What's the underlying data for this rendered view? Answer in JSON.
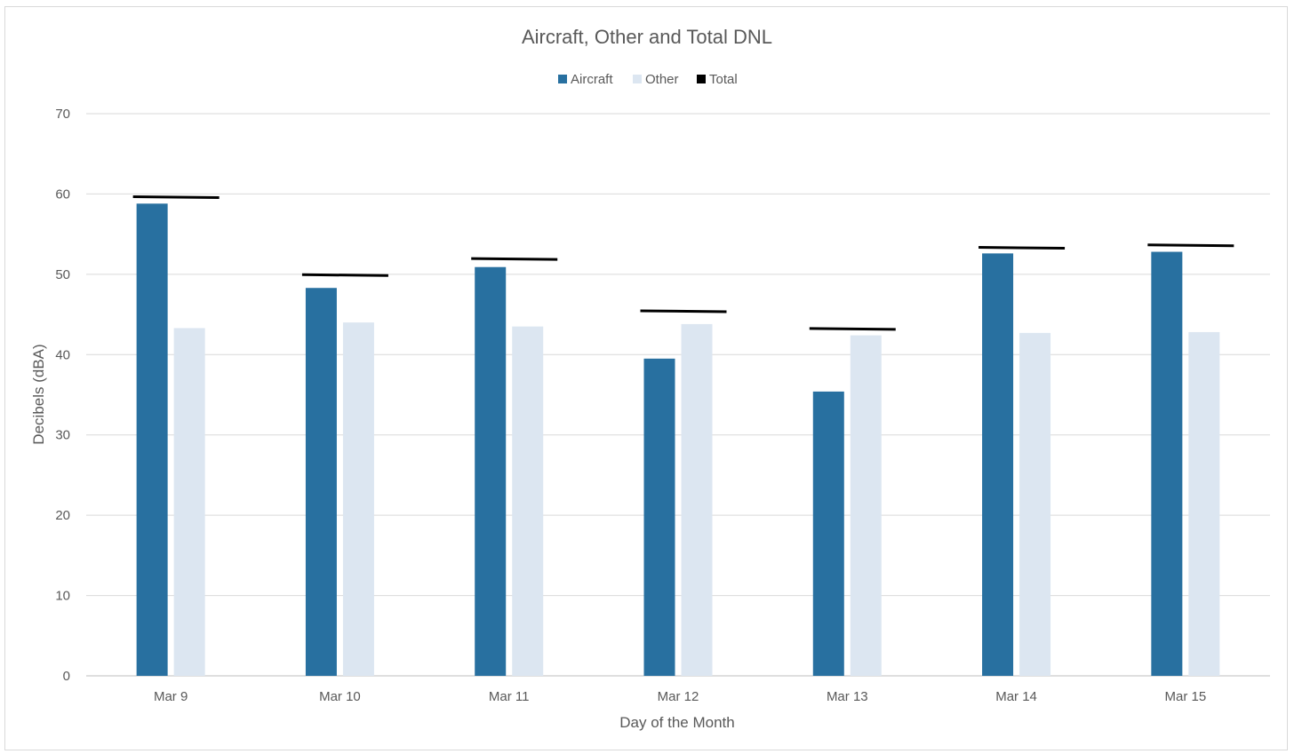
{
  "chart_data": {
    "type": "bar",
    "title": "Aircraft, Other and Total DNL",
    "xlabel": "Day of the Month",
    "ylabel": "Decibels (dBA)",
    "ylim": [
      0,
      70
    ],
    "yticks": [
      0,
      10,
      20,
      30,
      40,
      50,
      60,
      70
    ],
    "grid": true,
    "legend_position": "top",
    "categories": [
      "Mar 9",
      "Mar 10",
      "Mar 11",
      "Mar 12",
      "Mar 13",
      "Mar 14",
      "Mar 15"
    ],
    "series": [
      {
        "name": "Aircraft",
        "type": "bar",
        "color": "#2870a0",
        "values": [
          58.8,
          48.3,
          50.9,
          39.5,
          35.4,
          52.6,
          52.8
        ]
      },
      {
        "name": "Other",
        "type": "bar",
        "color": "#dce6f1",
        "values": [
          43.3,
          44.0,
          43.5,
          43.8,
          42.4,
          42.7,
          42.8
        ]
      },
      {
        "name": "Total",
        "type": "marker-line",
        "color": "#000000",
        "values": [
          59.6,
          49.9,
          51.9,
          45.4,
          43.2,
          53.3,
          53.6
        ]
      }
    ]
  }
}
